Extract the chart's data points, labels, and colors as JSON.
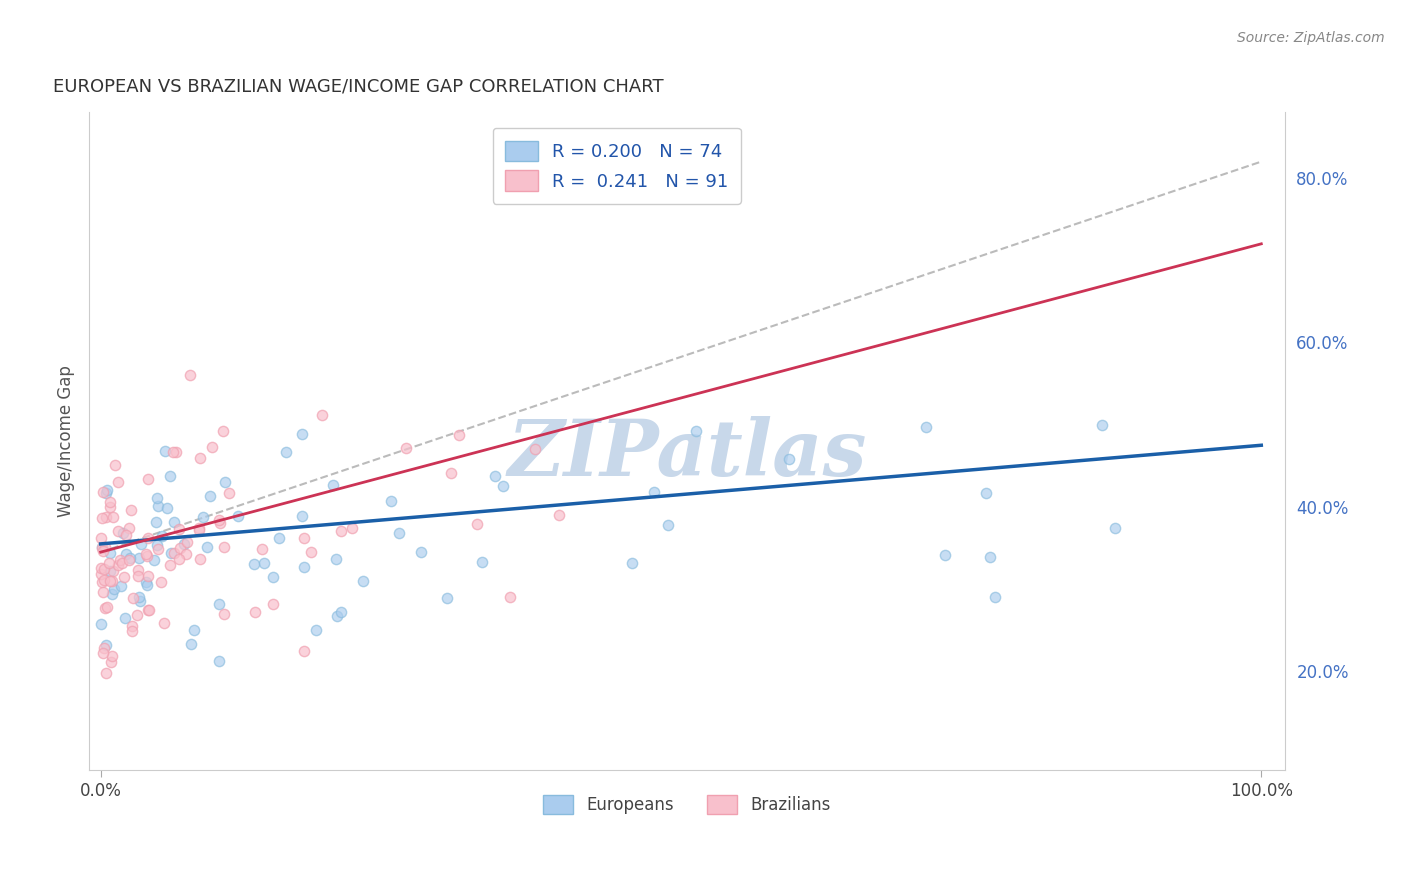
{
  "title": "EUROPEAN VS BRAZILIAN WAGE/INCOME GAP CORRELATION CHART",
  "source": "Source: ZipAtlas.com",
  "ylabel": "Wage/Income Gap",
  "yticks": [
    0.2,
    0.4,
    0.6,
    0.8
  ],
  "ytick_labels": [
    "20.0%",
    "40.0%",
    "60.0%",
    "80.0%"
  ],
  "xlim": [
    -0.01,
    1.02
  ],
  "ylim": [
    0.08,
    0.88
  ],
  "euro_color": "#88bbdd",
  "euro_color_fill": "#aaccee",
  "euro_color_line": "#1a5fa8",
  "brazil_color": "#f0a0b0",
  "brazil_color_fill": "#f8c0cc",
  "brazil_color_line": "#cc3355",
  "trend_color_dashed": "#bbbbbb",
  "watermark": "ZIPatlas",
  "watermark_color": "#c8d8ea",
  "legend_euro_label": "R = 0.200   N = 74",
  "legend_brazil_label": "R =  0.241   N = 91",
  "euro_R": 0.2,
  "euro_N": 74,
  "brazil_R": 0.241,
  "brazil_N": 91,
  "background_color": "#ffffff",
  "grid_color": "#dddddd",
  "euro_line_start": 0.355,
  "euro_line_end": 0.475,
  "brazil_line_x0": 0.0,
  "brazil_line_y0": 0.345,
  "brazil_line_x1": 1.0,
  "brazil_line_y1": 0.72,
  "dashed_line_x0": 0.0,
  "dashed_line_y0": 0.345,
  "dashed_line_x1": 1.0,
  "dashed_line_y1": 0.82
}
